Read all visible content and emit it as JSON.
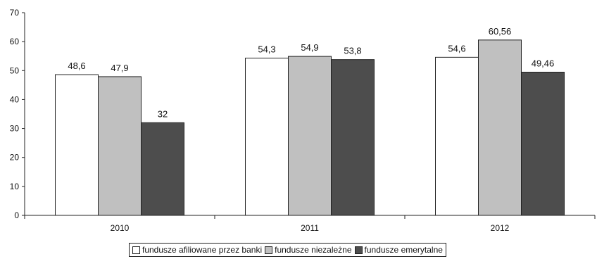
{
  "chart_data": {
    "type": "bar",
    "categories": [
      "2010",
      "2011",
      "2012"
    ],
    "series": [
      {
        "name": "fundusze afiliowane przez banki",
        "values": [
          48.6,
          54.3,
          54.6
        ],
        "labels": [
          "48,6",
          "54,3",
          "54,6"
        ],
        "color": "#ffffff"
      },
      {
        "name": "fundusze niezależne",
        "values": [
          47.9,
          54.9,
          60.56
        ],
        "labels": [
          "47,9",
          "54,9",
          "60,56"
        ],
        "color": "#c0c0c0"
      },
      {
        "name": "fundusze emerytalne",
        "values": [
          32,
          53.8,
          49.46
        ],
        "labels": [
          "32",
          "53,8",
          "49,46"
        ],
        "color": "#4d4d4d"
      }
    ],
    "ylim": [
      0,
      70
    ],
    "yticks": [
      "0",
      "10",
      "20",
      "30",
      "40",
      "50",
      "60",
      "70"
    ],
    "title": "",
    "xlabel": "",
    "ylabel": "",
    "grid": false,
    "legend_position": "bottom-center"
  }
}
